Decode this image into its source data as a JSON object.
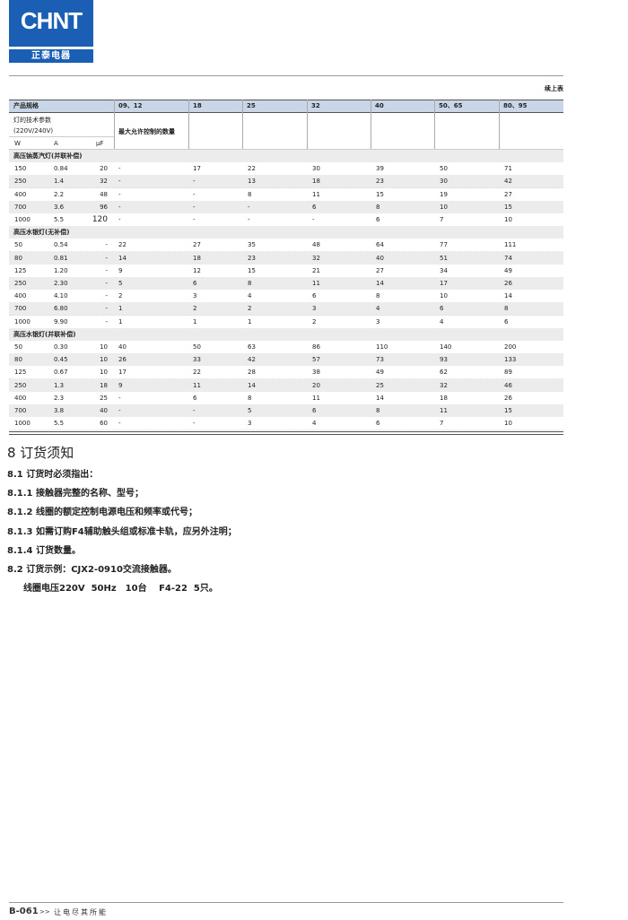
{
  "header": {
    "logo_en": "CHNT",
    "logo_cn": "正泰电器",
    "continued": "续上表"
  },
  "table": {
    "header": [
      "产品规格",
      "09、12",
      "18",
      "25",
      "32",
      "40",
      "50、65",
      "80、95"
    ],
    "param_label": "灯的技术参数",
    "voltage_label": "(220V/240V)",
    "max_label": "最大允许控制的数量",
    "units": [
      "W",
      "A",
      "μF"
    ],
    "sections": [
      {
        "title": "高压钠蒸汽灯(并联补偿)",
        "rows": [
          [
            "150",
            "0.84",
            "20",
            "-",
            "17",
            "22",
            "30",
            "39",
            "50",
            "71"
          ],
          [
            "250",
            "1.4",
            "32",
            "-",
            "-",
            "13",
            "18",
            "23",
            "30",
            "42"
          ],
          [
            "400",
            "2.2",
            "48",
            "-",
            "-",
            "8",
            "11",
            "15",
            "19",
            "27"
          ],
          [
            "700",
            "3.6",
            "96",
            "-",
            "-",
            "-",
            "6",
            "8",
            "10",
            "15"
          ],
          [
            "1000",
            "5.5",
            "120",
            "-",
            "-",
            "-",
            "-",
            "6",
            "7",
            "10"
          ]
        ]
      },
      {
        "title": "高压水银灯(无补偿)",
        "rows": [
          [
            "50",
            "0.54",
            "-",
            "22",
            "27",
            "35",
            "48",
            "64",
            "77",
            "111"
          ],
          [
            "80",
            "0.81",
            "-",
            "14",
            "18",
            "23",
            "32",
            "40",
            "51",
            "74"
          ],
          [
            "125",
            "1.20",
            "-",
            "9",
            "12",
            "15",
            "21",
            "27",
            "34",
            "49"
          ],
          [
            "250",
            "2.30",
            "-",
            "5",
            "6",
            "8",
            "11",
            "14",
            "17",
            "26"
          ],
          [
            "400",
            "4.10",
            "-",
            "2",
            "3",
            "4",
            "6",
            "8",
            "10",
            "14"
          ],
          [
            "700",
            "6.80",
            "-",
            "1",
            "2",
            "2",
            "3",
            "4",
            "6",
            "8"
          ],
          [
            "1000",
            "9.90",
            "-",
            "1",
            "1",
            "1",
            "2",
            "3",
            "4",
            "6"
          ]
        ]
      },
      {
        "title": "高压水银灯(并联补偿)",
        "rows": [
          [
            "50",
            "0.30",
            "10",
            "40",
            "50",
            "63",
            "86",
            "110",
            "140",
            "200"
          ],
          [
            "80",
            "0.45",
            "10",
            "26",
            "33",
            "42",
            "57",
            "73",
            "93",
            "133"
          ],
          [
            "125",
            "0.67",
            "10",
            "17",
            "22",
            "28",
            "38",
            "49",
            "62",
            "89"
          ],
          [
            "250",
            "1.3",
            "18",
            "9",
            "11",
            "14",
            "20",
            "25",
            "32",
            "46"
          ],
          [
            "400",
            "2.3",
            "25",
            "-",
            "6",
            "8",
            "11",
            "14",
            "18",
            "26"
          ],
          [
            "700",
            "3.8",
            "40",
            "-",
            "-",
            "5",
            "6",
            "8",
            "11",
            "15"
          ],
          [
            "1000",
            "5.5",
            "60",
            "-",
            "-",
            "3",
            "4",
            "6",
            "7",
            "10"
          ]
        ]
      }
    ]
  },
  "ordering": {
    "title": "8 订货须知",
    "items": [
      "8.1 订货时必须指出：",
      "8.1.1 接触器完整的名称、型号；",
      "8.1.2 线圈的额定控制电源电压和频率或代号；",
      "8.1.3 如需订购F4辅助触头组或标准卡轨，应另外注明；",
      "8.1.4 订货数量。",
      "8.2 订货示例：CJX2-0910交流接触器。",
      "线圈电压220V  50Hz　10台　 F4-22  5只。"
    ]
  },
  "footer": {
    "page": "B-061",
    "arrows": ">>",
    "slogan": "让电尽其所能"
  }
}
